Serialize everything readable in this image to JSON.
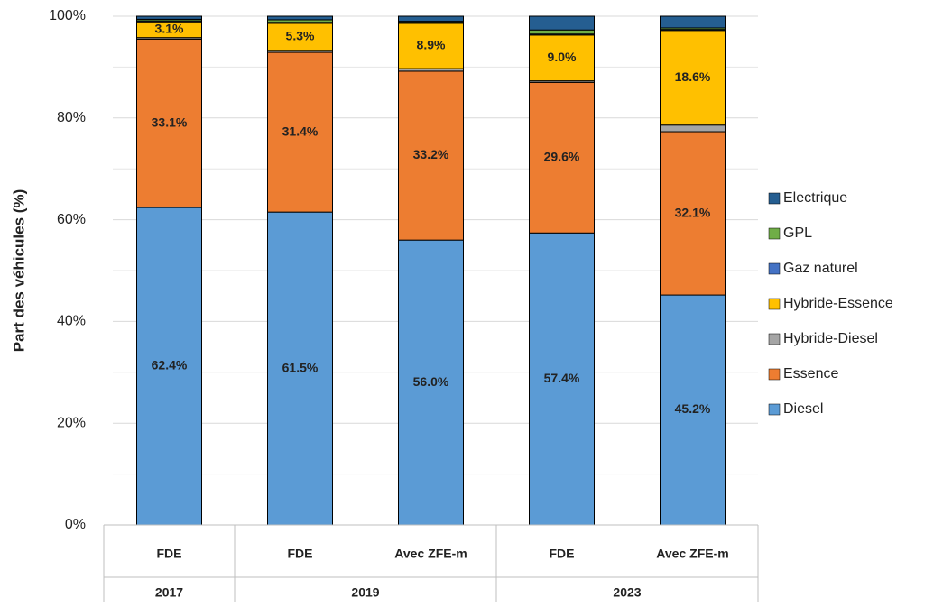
{
  "chart_data": {
    "type": "stacked_bar",
    "y_label": "Part des véhicules (%)",
    "categories": [
      "FDE",
      "FDE",
      "Avec ZFE-m",
      "FDE",
      "Avec ZFE-m"
    ],
    "groups": [
      {
        "label": "2017",
        "members": [
          0
        ]
      },
      {
        "label": "2019",
        "members": [
          1,
          2
        ]
      },
      {
        "label": "2023",
        "members": [
          3,
          4
        ]
      }
    ],
    "series": [
      {
        "name": "Diesel",
        "color": "#5b9bd5",
        "values": [
          62.4,
          61.5,
          56.0,
          57.4,
          45.2
        ],
        "value_labels": [
          "62.4%",
          "61.5%",
          "56.0%",
          "57.4%",
          "45.2%"
        ]
      },
      {
        "name": "Essence",
        "color": "#ed7d31",
        "values": [
          33.1,
          31.4,
          33.2,
          29.6,
          32.1
        ],
        "value_labels": [
          "33.1%",
          "31.4%",
          "33.2%",
          "29.6%",
          "32.1%"
        ]
      },
      {
        "name": "Hybride-Diesel",
        "color": "#a5a5a5",
        "values": [
          0.3,
          0.4,
          0.5,
          0.3,
          1.3
        ]
      },
      {
        "name": "Hybride-Essence",
        "color": "#ffc000",
        "values": [
          3.1,
          5.3,
          8.9,
          9.0,
          18.6
        ],
        "value_labels": [
          "3.1%",
          "5.3%",
          "8.9%",
          "9.0%",
          "18.6%"
        ]
      },
      {
        "name": "Gaz naturel",
        "color": "#4472c4",
        "values": [
          0.2,
          0.2,
          0.2,
          0.2,
          0.2
        ]
      },
      {
        "name": "GPL",
        "color": "#70ad47",
        "values": [
          0.3,
          0.5,
          0.2,
          0.8,
          0.3
        ]
      },
      {
        "name": "Electrique",
        "color": "#255e91",
        "values": [
          0.6,
          0.7,
          1.0,
          2.7,
          2.3
        ]
      }
    ],
    "ylim": [
      0,
      100
    ],
    "yticks": [
      {
        "value": 0,
        "label": "0%"
      },
      {
        "value": 20,
        "label": "20%"
      },
      {
        "value": 40,
        "label": "40%"
      },
      {
        "value": 60,
        "label": "60%"
      },
      {
        "value": 80,
        "label": "80%"
      },
      {
        "value": 100,
        "label": "100%"
      }
    ],
    "minor_yticks": [
      10,
      30,
      50,
      70,
      90
    ],
    "grid": true,
    "legend": "right",
    "legend_order": "reversed"
  }
}
